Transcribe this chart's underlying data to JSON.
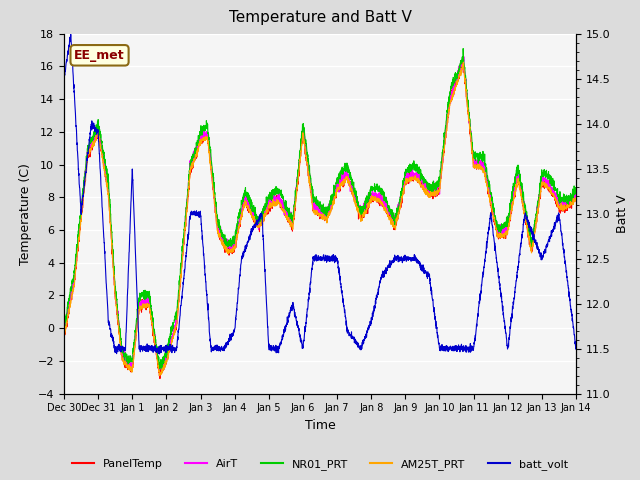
{
  "title": "Temperature and Batt V",
  "xlabel": "Time",
  "ylabel_left": "Temperature (C)",
  "ylabel_right": "Batt V",
  "xlim_days": [
    0,
    15
  ],
  "ylim_left": [
    -4,
    18
  ],
  "ylim_right": [
    11.0,
    15.0
  ],
  "x_tick_labels": [
    "Dec 30",
    "Dec 31",
    "Jan 1",
    "Jan 2",
    "Jan 3",
    "Jan 4",
    "Jan 5",
    "Jan 6",
    "Jan 7",
    "Jan 8",
    "Jan 9",
    "Jan 10",
    "Jan 11",
    "Jan 12",
    "Jan 13",
    "Jan 14"
  ],
  "annotation_text": "EE_met",
  "annotation_color": "#8B0000",
  "annotation_bg": "#FFFFE0",
  "annotation_border": "#8B6914",
  "legend_entries": [
    "PanelTemp",
    "AirT",
    "NR01_PRT",
    "AM25T_PRT",
    "batt_volt"
  ],
  "legend_colors": [
    "#FF0000",
    "#FF00FF",
    "#00CC00",
    "#FFA500",
    "#0000CC"
  ],
  "line_colors": {
    "PanelTemp": "#FF0000",
    "AirT": "#FF00FF",
    "NR01_PRT": "#00CC00",
    "AM25T_PRT": "#FFA500",
    "batt_volt": "#0000CC"
  },
  "background_color": "#DCDCDC",
  "plot_bg": "#F5F5F5",
  "grid_color": "#FFFFFF"
}
